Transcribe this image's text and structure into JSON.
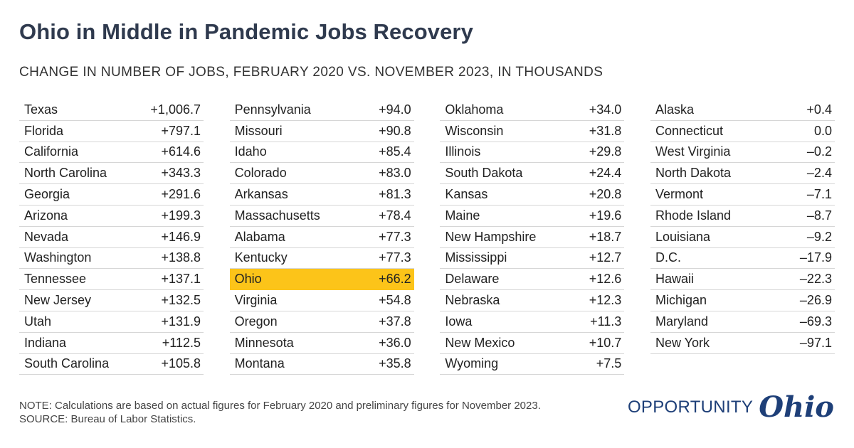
{
  "title": "Ohio in Middle in Pandemic Jobs Recovery",
  "subtitle": "CHANGE IN NUMBER OF JOBS, FEBRUARY 2020 VS. NOVEMBER 2023, IN THOUSANDS",
  "highlight_color": "#fcc419",
  "highlight_row": "Ohio",
  "note": "NOTE: Calculations are based on actual figures for February 2020 and preliminary figures for November 2023.",
  "source": "SOURCE: Bureau of Labor Statistics.",
  "logo": {
    "word": "OPPORTUNITY",
    "script": "Ohio"
  },
  "chart_data": {
    "type": "table",
    "columns": [
      [
        {
          "state": "Texas",
          "value": "+1,006.7"
        },
        {
          "state": "Florida",
          "value": "+797.1"
        },
        {
          "state": "California",
          "value": "+614.6"
        },
        {
          "state": "North Carolina",
          "value": "+343.3"
        },
        {
          "state": "Georgia",
          "value": "+291.6"
        },
        {
          "state": "Arizona",
          "value": "+199.3"
        },
        {
          "state": "Nevada",
          "value": "+146.9"
        },
        {
          "state": "Washington",
          "value": "+138.8"
        },
        {
          "state": "Tennessee",
          "value": "+137.1"
        },
        {
          "state": "New Jersey",
          "value": "+132.5"
        },
        {
          "state": "Utah",
          "value": "+131.9"
        },
        {
          "state": "Indiana",
          "value": "+112.5"
        },
        {
          "state": "South Carolina",
          "value": "+105.8"
        }
      ],
      [
        {
          "state": "Pennsylvania",
          "value": "+94.0"
        },
        {
          "state": "Missouri",
          "value": "+90.8"
        },
        {
          "state": "Idaho",
          "value": "+85.4"
        },
        {
          "state": "Colorado",
          "value": "+83.0"
        },
        {
          "state": "Arkansas",
          "value": "+81.3"
        },
        {
          "state": "Massachusetts",
          "value": "+78.4"
        },
        {
          "state": "Alabama",
          "value": "+77.3"
        },
        {
          "state": "Kentucky",
          "value": "+77.3"
        },
        {
          "state": "Ohio",
          "value": "+66.2"
        },
        {
          "state": "Virginia",
          "value": "+54.8"
        },
        {
          "state": "Oregon",
          "value": "+37.8"
        },
        {
          "state": "Minnesota",
          "value": "+36.0"
        },
        {
          "state": "Montana",
          "value": "+35.8"
        }
      ],
      [
        {
          "state": "Oklahoma",
          "value": "+34.0"
        },
        {
          "state": "Wisconsin",
          "value": "+31.8"
        },
        {
          "state": "Illinois",
          "value": "+29.8"
        },
        {
          "state": "South Dakota",
          "value": "+24.4"
        },
        {
          "state": "Kansas",
          "value": "+20.8"
        },
        {
          "state": "Maine",
          "value": "+19.6"
        },
        {
          "state": "New Hampshire",
          "value": "+18.7"
        },
        {
          "state": "Mississippi",
          "value": "+12.7"
        },
        {
          "state": "Delaware",
          "value": "+12.6"
        },
        {
          "state": "Nebraska",
          "value": "+12.3"
        },
        {
          "state": "Iowa",
          "value": "+11.3"
        },
        {
          "state": "New Mexico",
          "value": "+10.7"
        },
        {
          "state": "Wyoming",
          "value": "+7.5"
        }
      ],
      [
        {
          "state": "Alaska",
          "value": "+0.4"
        },
        {
          "state": "Connecticut",
          "value": "0.0"
        },
        {
          "state": "West Virginia",
          "value": "–0.2"
        },
        {
          "state": "North Dakota",
          "value": "–2.4"
        },
        {
          "state": "Vermont",
          "value": "–7.1"
        },
        {
          "state": "Rhode Island",
          "value": "–8.7"
        },
        {
          "state": "Louisiana",
          "value": "–9.2"
        },
        {
          "state": "D.C.",
          "value": "–17.9"
        },
        {
          "state": "Hawaii",
          "value": "–22.3"
        },
        {
          "state": "Michigan",
          "value": "–26.9"
        },
        {
          "state": "Maryland",
          "value": "–69.3"
        },
        {
          "state": "New York",
          "value": "–97.1"
        }
      ]
    ]
  }
}
